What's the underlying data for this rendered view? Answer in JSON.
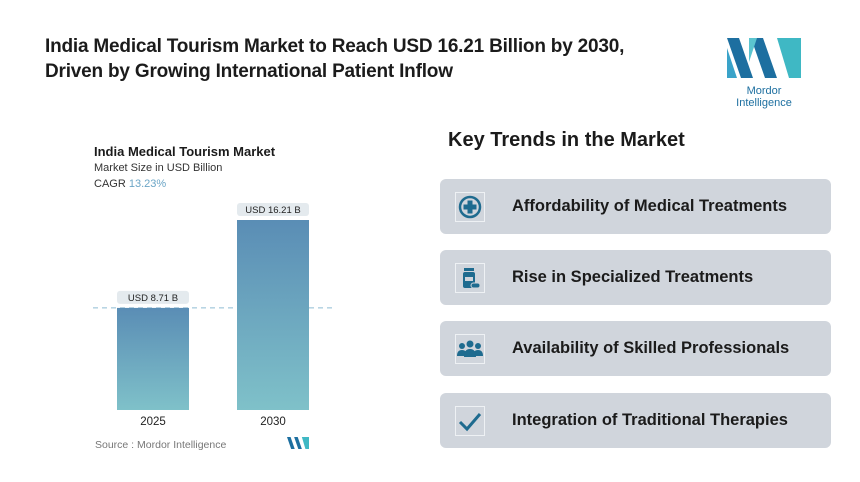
{
  "header": {
    "title_line1": "India Medical Tourism Market to Reach USD 16.21 Billion by 2030,",
    "title_line2": "Driven by Growing International Patient Inflow"
  },
  "logo": {
    "text": "Mordor Intelligence"
  },
  "chart_data": {
    "type": "bar",
    "title": "India Medical Tourism Market",
    "subtitle": "Market Size in USD Billion",
    "cagr_label": "CAGR",
    "cagr_value": "13.23%",
    "categories": [
      "2025",
      "2030"
    ],
    "values": [
      8.71,
      16.21
    ],
    "data_labels": [
      "USD 8.71 B",
      "USD 16.21 B"
    ],
    "ylim": [
      0,
      16.21
    ],
    "grid": false,
    "colors": {
      "bar_top": "#5a8db5",
      "bar_bottom": "#7fc1c9",
      "dashed_line": "#8fbcd3"
    },
    "source": "Source :  Mordor Intelligence"
  },
  "trends": {
    "heading": "Key Trends in the Market",
    "accent": "#1e6b8f",
    "items": [
      {
        "label": "Affordability of Medical Treatments",
        "icon": "medical-cross-icon"
      },
      {
        "label": "Rise in Specialized Treatments",
        "icon": "medicine-bottle-icon"
      },
      {
        "label": "Availability of Skilled Professionals",
        "icon": "people-group-icon"
      },
      {
        "label": "Integration of Traditional Therapies",
        "icon": "checkmark-icon"
      }
    ]
  }
}
